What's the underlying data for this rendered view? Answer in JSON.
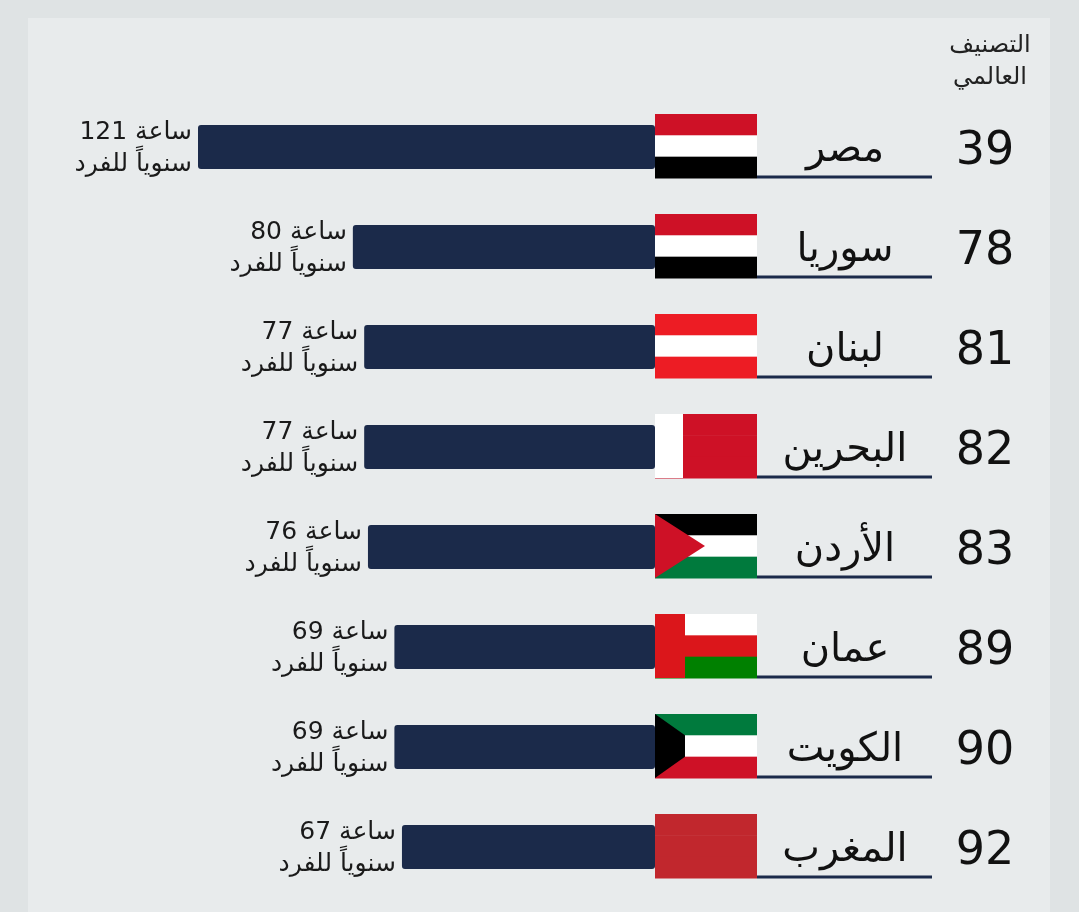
{
  "chart_data": {
    "type": "bar",
    "orientation": "horizontal",
    "color": "#1b2a4a",
    "categories": [
      "مصر",
      "سوريا",
      "لبنان",
      "البحرين",
      "الأردن",
      "عمان",
      "الكويت",
      "المغرب"
    ],
    "values": [
      121,
      80,
      77,
      77,
      76,
      69,
      69,
      67
    ],
    "value_labels": [
      "121 ساعة\nسنوياً للفرد",
      "80 ساعة\nسنوياً للفرد",
      "77 ساعة\nسنوياً للفرد",
      "77 ساعة\nسنوياً للفرد",
      "76 ساعة\nسنوياً للفرد",
      "69 ساعة\nسنوياً للفرد",
      "69 ساعة\nسنوياً للفرد",
      "67 ساعة\nسنوياً للفرد"
    ],
    "annotations": [
      "التصنيف\nالعالمي",
      "39",
      "78",
      "81",
      "82",
      "83",
      "89",
      "90",
      "92"
    ]
  }
}
